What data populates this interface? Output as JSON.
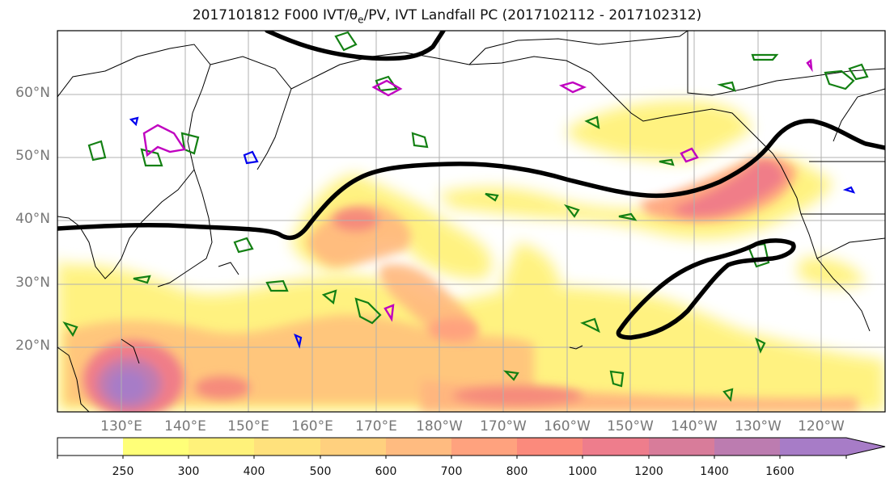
{
  "title": {
    "text": "2017101812 F000 IVT/θ",
    "subscript": "e",
    "rest": "/PV, IVT Landfall PC (2017102112 - 2017102312)"
  },
  "map": {
    "lat_labels": [
      "60°N",
      "50°N",
      "40°N",
      "30°N",
      "20°N"
    ],
    "lon_labels": [
      "130°E",
      "140°E",
      "150°E",
      "160°E",
      "170°E",
      "180°W",
      "170°W",
      "160°W",
      "150°W",
      "140°W",
      "130°W",
      "120°W"
    ],
    "colors": {
      "theta_e_contour": "#000000",
      "pv_contour_green": "#138013",
      "pv_contour_magenta": "#c000c0",
      "pv_contour_blue": "#0000ee",
      "coastline": "#000000",
      "grid": "#b0b0b0"
    }
  },
  "colorbar": {
    "levels": [
      "250",
      "300",
      "400",
      "500",
      "600",
      "700",
      "800",
      "1000",
      "1200",
      "1400",
      "1600"
    ],
    "colors": [
      "#ffffff",
      "#ffff78",
      "#fff27a",
      "#ffe17c",
      "#ffd07e",
      "#ffbb80",
      "#ffa27e",
      "#fb8a7c",
      "#ee7d8c",
      "#d87c9a",
      "#bc7cb0",
      "#a77cc7"
    ]
  }
}
